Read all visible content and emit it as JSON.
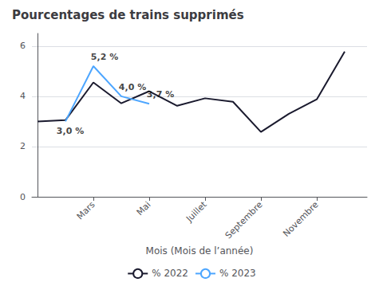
{
  "chart_data": {
    "type": "line",
    "title": "Pourcentages de trains supprimés",
    "xlabel": "Mois (Mois de l’année)",
    "series": [
      {
        "name": "% 2022",
        "color": "#1a1a2e",
        "x": [
          0,
          1,
          2,
          3,
          4,
          5,
          6,
          7,
          8,
          9,
          10,
          11
        ],
        "values": [
          3.0,
          3.05,
          4.55,
          3.72,
          4.2,
          3.62,
          3.92,
          3.78,
          2.58,
          3.3,
          3.88,
          5.78
        ]
      },
      {
        "name": "% 2023",
        "color": "#4da6ff",
        "x": [
          1,
          2,
          3,
          4
        ],
        "values": [
          3.0,
          5.2,
          4.0,
          3.7
        ]
      }
    ],
    "annotations": [
      {
        "x": 1,
        "y": 3.0,
        "text": "3,0 %"
      },
      {
        "x": 2,
        "y": 5.2,
        "text": "5,2 %"
      },
      {
        "x": 3,
        "y": 4.0,
        "text": "4,0 %"
      },
      {
        "x": 4,
        "y": 3.7,
        "text": "3,7 %"
      }
    ],
    "xlim": [
      -0.2,
      11.8
    ],
    "xticks": [
      {
        "value": 2,
        "label": "Mars"
      },
      {
        "value": 4,
        "label": "Mai"
      },
      {
        "value": 6,
        "label": "Juillet"
      },
      {
        "value": 8,
        "label": "Septembre"
      },
      {
        "value": 10,
        "label": "Novembre"
      }
    ],
    "ylim": [
      0,
      6.5
    ],
    "yticks": [
      0,
      2,
      4,
      6
    ],
    "grid": true,
    "legend": "bottom"
  }
}
